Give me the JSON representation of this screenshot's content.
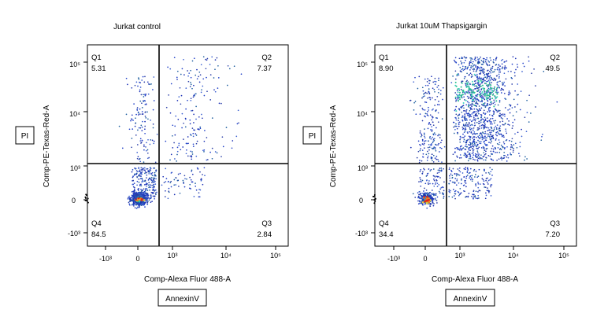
{
  "chart_data": [
    {
      "type": "scatter",
      "title": "Jurkat control",
      "xlabel": "Comp-Alexa Fluor 488-A",
      "ylabel": "Comp-PE-Texas-Red-A",
      "side_label_y": "PI",
      "side_label_x": "AnnexinV",
      "x_ticks": [
        "-10³",
        "0",
        "10³",
        "10⁴",
        "10⁵"
      ],
      "y_ticks": [
        "10⁵",
        "10⁴",
        "10³",
        "0",
        "-10³"
      ],
      "quadrants": [
        {
          "name": "Q1",
          "value": "5.31",
          "percent": 5.31
        },
        {
          "name": "Q2",
          "value": "7.37",
          "percent": 7.37
        },
        {
          "name": "Q3",
          "value": "2.84",
          "percent": 2.84
        },
        {
          "name": "Q4",
          "value": "84.5",
          "percent": 84.5
        }
      ]
    },
    {
      "type": "scatter",
      "title": "Jurkat 10uM Thapsigargin",
      "xlabel": "Comp-Alexa Fluor 488-A",
      "ylabel": "Comp-PE-Texas-Red-A",
      "side_label_y": "PI",
      "side_label_x": "AnnexinV",
      "x_ticks": [
        "-10³",
        "0",
        "10³",
        "10⁴",
        "10⁵"
      ],
      "y_ticks": [
        "10⁵",
        "10⁴",
        "10³",
        "0",
        "-10³"
      ],
      "quadrants": [
        {
          "name": "Q1",
          "value": "8.90",
          "percent": 8.9
        },
        {
          "name": "Q2",
          "value": "49.5",
          "percent": 49.5
        },
        {
          "name": "Q3",
          "value": "7.20",
          "percent": 7.2
        },
        {
          "name": "Q4",
          "value": "34.4",
          "percent": 34.4
        }
      ]
    }
  ]
}
